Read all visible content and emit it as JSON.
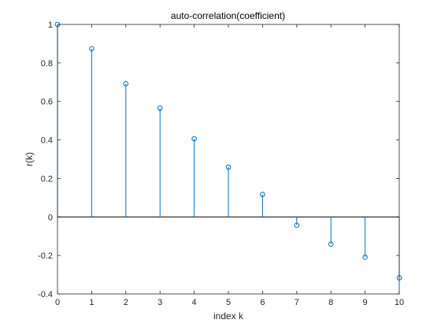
{
  "chart_data": {
    "type": "stem",
    "title": "auto-correlation(coefficient)",
    "xlabel": "index k",
    "ylabel": "r(k)",
    "xlim": [
      0,
      10
    ],
    "ylim": [
      -0.4,
      1
    ],
    "xticks": [
      "0",
      "1",
      "2",
      "3",
      "4",
      "5",
      "6",
      "7",
      "8",
      "9",
      "10"
    ],
    "yticks": [
      "-0.4",
      "-0.2",
      "0",
      "0.2",
      "0.4",
      "0.6",
      "0.8",
      "1"
    ],
    "x": [
      0,
      1,
      2,
      3,
      4,
      5,
      6,
      7,
      8,
      9,
      10
    ],
    "y": [
      1.0,
      0.874,
      0.692,
      0.565,
      0.406,
      0.259,
      0.117,
      -0.043,
      -0.141,
      -0.209,
      -0.316
    ],
    "baseline": 0,
    "grid": false,
    "colors": {
      "series": "#0072bd",
      "axes": "#262626",
      "baseline": "#000000"
    }
  }
}
